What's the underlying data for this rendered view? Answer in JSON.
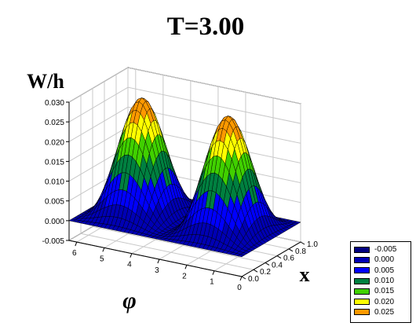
{
  "chart_data": {
    "type": "surface3d",
    "title": "T=3.00",
    "zlabel": "W/h",
    "xlabel": "x",
    "ylabel": "φ",
    "z_ticks": [
      "-0.005",
      "0.000",
      "0.005",
      "0.010",
      "0.015",
      "0.020",
      "0.025",
      "0.030"
    ],
    "x_ticks": [
      "0.0",
      "0.2",
      "0.4",
      "0.6",
      "0.8",
      "1.0"
    ],
    "phi_ticks": [
      "0",
      "1",
      "2",
      "3",
      "4",
      "5",
      "6"
    ],
    "zlim": [
      -0.005,
      0.03
    ],
    "xlim": [
      0.0,
      1.0
    ],
    "phi_lim": [
      0,
      6.28
    ],
    "surface": {
      "description_formula": "W/h ≈ 0.029 · sin²(πx) · sin²(φ), peaks at φ≈1.57 and φ≈4.71, x≈0.5",
      "peak_value": 0.029,
      "peaks": [
        {
          "x": 0.5,
          "phi": 1.57,
          "z": 0.029
        },
        {
          "x": 0.5,
          "phi": 4.71,
          "z": 0.029
        }
      ]
    },
    "legend": {
      "placement": "bottom-right",
      "items": [
        {
          "label": "-0.005",
          "color": "#000080"
        },
        {
          "label": "0.000",
          "color": "#0000b4"
        },
        {
          "label": "0.005",
          "color": "#0000ff"
        },
        {
          "label": "0.010",
          "color": "#008040"
        },
        {
          "label": "0.015",
          "color": "#40d000"
        },
        {
          "label": "0.020",
          "color": "#ffff00"
        },
        {
          "label": "0.025",
          "color": "#ff9900"
        }
      ]
    },
    "grid": true
  }
}
